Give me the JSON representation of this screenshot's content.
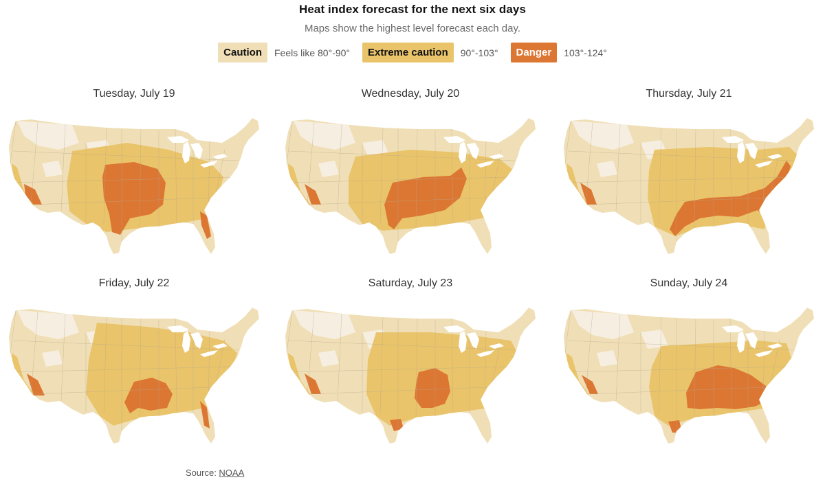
{
  "header": {
    "title": "Heat index forecast for the next six days",
    "subtitle": "Maps show the highest level forecast each day."
  },
  "legend": [
    {
      "label": "Caution",
      "range": "Feels like 80°-90°",
      "color": "#f0dfb6",
      "text_color": "#121212"
    },
    {
      "label": "Extreme caution",
      "range": "90°-103°",
      "color": "#e9c46a",
      "text_color": "#121212"
    },
    {
      "label": "Danger",
      "range": "103°-124°",
      "color": "#dc7633",
      "text_color": "#ffffff"
    }
  ],
  "panels": [
    {
      "label": "Tuesday, July 19",
      "danger_region": "southern-plains"
    },
    {
      "label": "Wednesday, July 20",
      "danger_region": "south-central"
    },
    {
      "label": "Thursday, July 21",
      "danger_region": "southeast-and-east-coast"
    },
    {
      "label": "Friday, July 22",
      "danger_region": "texas-louisiana"
    },
    {
      "label": "Saturday, July 23",
      "danger_region": "east-texas-arkansas"
    },
    {
      "label": "Sunday, July 24",
      "danger_region": "lower-mississippi-valley"
    }
  ],
  "colors": {
    "no_data": "#f6f1e6",
    "caution": "#f0dfb6",
    "extreme_caution": "#e9c46a",
    "danger": "#dc7633",
    "borders": "#b9a98a"
  },
  "footer": {
    "source_prefix": "Source: ",
    "source_link": "NOAA"
  }
}
